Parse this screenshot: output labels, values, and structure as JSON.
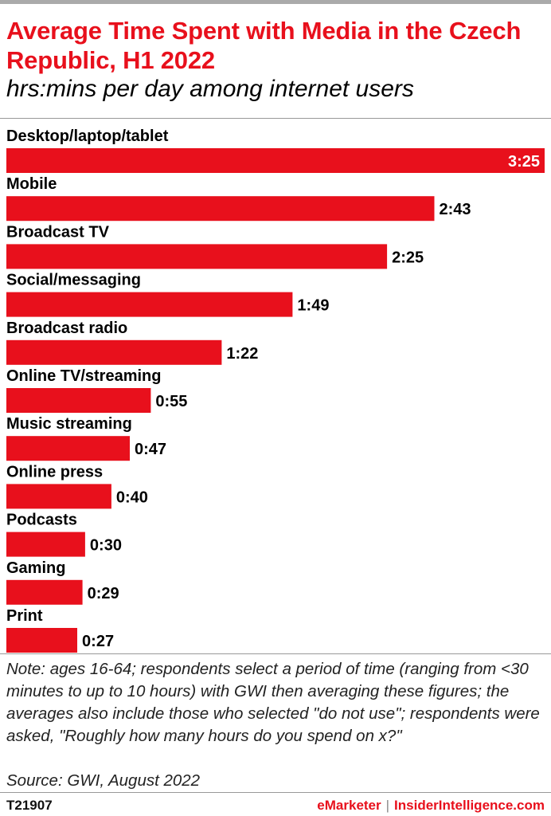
{
  "header": {
    "title": "Average Time Spent with Media in the Czech Republic, H1 2022",
    "subtitle": "hrs:mins per day among internet users"
  },
  "colors": {
    "bar": "#e8101c",
    "title": "#e8101c"
  },
  "chart_data": {
    "type": "bar",
    "orientation": "horizontal",
    "title": "Average Time Spent with Media in the Czech Republic, H1 2022",
    "subtitle": "hrs:mins per day among internet users",
    "categories": [
      "Desktop/laptop/tablet",
      "Mobile",
      "Broadcast TV",
      "Social/messaging",
      "Broadcast radio",
      "Online TV/streaming",
      "Music streaming",
      "Online press",
      "Podcasts",
      "Gaming",
      "Print"
    ],
    "value_labels": [
      "3:25",
      "2:43",
      "2:25",
      "1:49",
      "1:22",
      "0:55",
      "0:47",
      "0:40",
      "0:30",
      "0:29",
      "0:27"
    ],
    "values_minutes": [
      205,
      163,
      145,
      109,
      82,
      55,
      47,
      40,
      30,
      29,
      27
    ],
    "xlim": [
      0,
      205
    ],
    "grid": false,
    "legend": "none"
  },
  "footer": {
    "note": "Note: ages 16-64; respondents select a period of time (ranging from <30 minutes to up to 10 hours) with GWI then averaging these figures; the averages also include those who selected \"do not use\"; respondents were asked, \"Roughly how many hours do you spend on x?\"",
    "source": "Source:  GWI, August 2022",
    "chart_id": "T21907",
    "brand_left": "eMarketer",
    "brand_separator": "|",
    "brand_right": "InsiderIntelligence.com"
  }
}
